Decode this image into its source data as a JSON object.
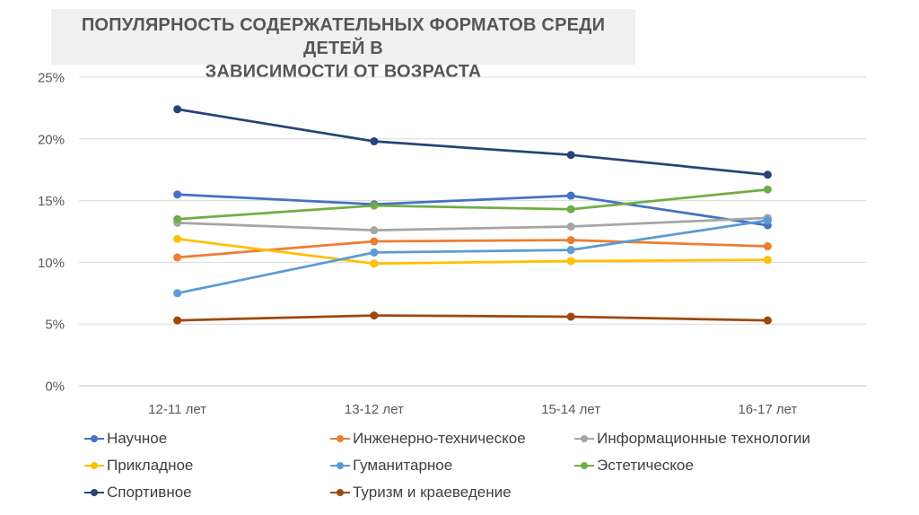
{
  "title": "ПОПУЛЯРНОСТЬ СОДЕРЖАТЕЛЬНЫХ ФОРМАТОВ СРЕДИ ДЕТЕЙ В ЗАВИСИМОСТИ ОТ ВОЗРАСТА",
  "title_lines": [
    "ПОПУЛЯРНОСТЬ СОДЕРЖАТЕЛЬНЫХ ФОРМАТОВ СРЕДИ ДЕТЕЙ В",
    "ЗАВИСИМОСТИ ОТ ВОЗРАСТА"
  ],
  "colors": {
    "title_bg": "#f0f0f0",
    "title_text": "#565656",
    "gridline": "#d9d9d9",
    "axis_line": "#bfbfbf",
    "axis_text": "#595959",
    "legend_text": "#3f3f3f"
  },
  "chart_data": {
    "type": "line",
    "title": "ПОПУЛЯРНОСТЬ СОДЕРЖАТЕЛЬНЫХ ФОРМАТОВ СРЕДИ ДЕТЕЙ В ЗАВИСИМОСТИ ОТ ВОЗРАСТА",
    "categories": [
      "12-11 лет",
      "13-12 лет",
      "15-14 лет",
      "16-17 лет"
    ],
    "series": [
      {
        "name": "Научное",
        "color": "#4472C4",
        "values": [
          15.5,
          14.7,
          15.4,
          13.0
        ]
      },
      {
        "name": "Инженерно-техническое",
        "color": "#ED7D31",
        "values": [
          10.4,
          11.7,
          11.8,
          11.3
        ]
      },
      {
        "name": "Информационные технологии",
        "color": "#A5A5A5",
        "values": [
          13.2,
          12.6,
          12.9,
          13.6
        ]
      },
      {
        "name": "Прикладное",
        "color": "#FFC000",
        "values": [
          11.9,
          9.9,
          10.1,
          10.2
        ]
      },
      {
        "name": "Гуманитарное",
        "color": "#5B9BD5",
        "values": [
          7.5,
          10.8,
          11.0,
          13.4
        ]
      },
      {
        "name": "Эстетическое",
        "color": "#70AD47",
        "values": [
          13.5,
          14.6,
          14.3,
          15.9
        ]
      },
      {
        "name": "Спортивное",
        "color": "#264478",
        "values": [
          22.4,
          19.8,
          18.7,
          17.1
        ]
      },
      {
        "name": "Туризм и краеведение",
        "color": "#9E480E",
        "values": [
          5.3,
          5.7,
          5.6,
          5.3
        ]
      }
    ],
    "xlabel": "",
    "ylabel": "",
    "ylim": [
      0,
      25
    ],
    "yticks": [
      {
        "value": 0,
        "label": "0%"
      },
      {
        "value": 5,
        "label": "5%"
      },
      {
        "value": 10,
        "label": "10%"
      },
      {
        "value": 15,
        "label": "15%"
      },
      {
        "value": 20,
        "label": "20%"
      },
      {
        "value": 25,
        "label": "25%"
      }
    ],
    "grid": true,
    "legend_position": "bottom"
  }
}
